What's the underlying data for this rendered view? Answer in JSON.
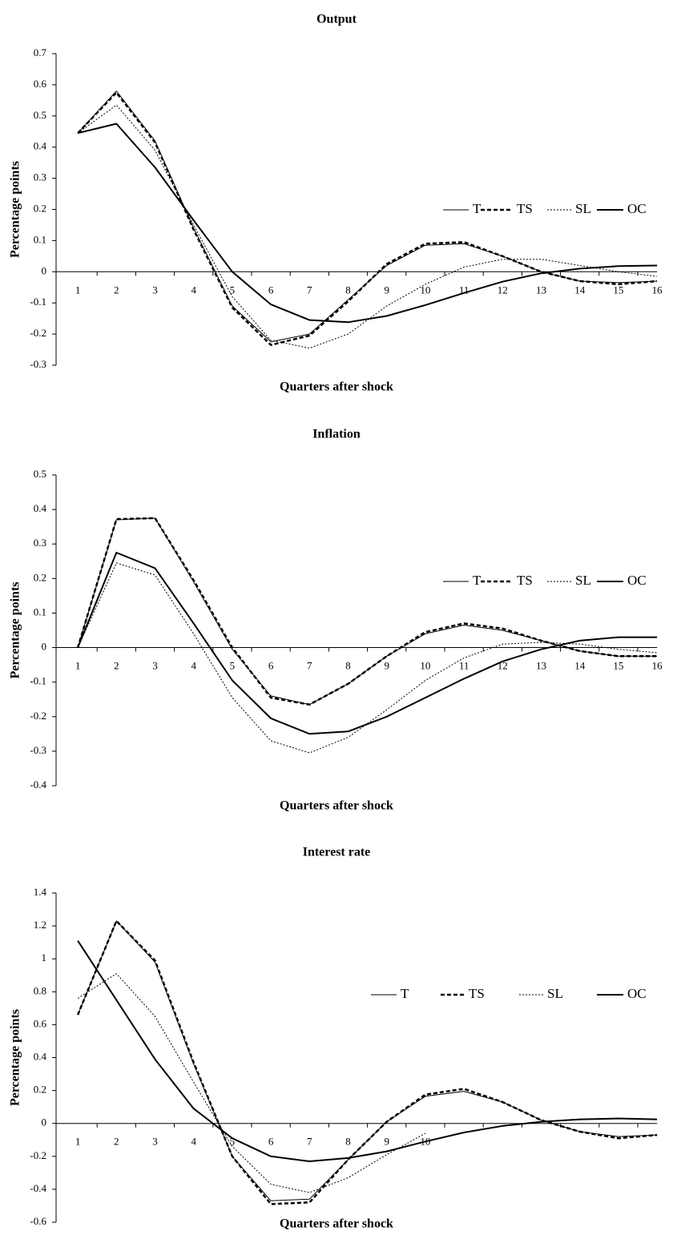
{
  "chart_data": [
    {
      "type": "line",
      "title": "Output",
      "xlabel": "Quarters after shock",
      "ylabel": "Percentage points",
      "categories": [
        "1",
        "2",
        "3",
        "4",
        "5",
        "6",
        "7",
        "8",
        "9",
        "10",
        "11",
        "12",
        "13",
        "14",
        "15",
        "16"
      ],
      "ylim": [
        -0.3,
        0.7
      ],
      "yticks": [
        0.7,
        0.6,
        0.5,
        0.4,
        0.3,
        0.2,
        0.1,
        0,
        -0.1,
        -0.2,
        -0.3
      ],
      "legend": "right",
      "series": [
        {
          "name": "T",
          "color": "#000000",
          "linestyle": "solid",
          "linewidth": 1,
          "values": [
            0.445,
            0.58,
            0.42,
            0.14,
            -0.11,
            -0.225,
            -0.2,
            -0.09,
            0.02,
            0.085,
            0.09,
            0.05,
            0.0,
            -0.03,
            -0.035,
            -0.03
          ]
        },
        {
          "name": "TS",
          "color": "#000000",
          "linestyle": "dashed",
          "linewidth": 2.5,
          "values": [
            0.445,
            0.575,
            0.415,
            0.135,
            -0.115,
            -0.235,
            -0.205,
            -0.095,
            0.025,
            0.09,
            0.095,
            0.05,
            0.0,
            -0.03,
            -0.04,
            -0.03
          ]
        },
        {
          "name": "SL",
          "color": "#000000",
          "linestyle": "dotted",
          "linewidth": 1,
          "values": [
            0.445,
            0.535,
            0.39,
            0.15,
            -0.08,
            -0.22,
            -0.245,
            -0.2,
            -0.11,
            -0.04,
            0.015,
            0.04,
            0.04,
            0.02,
            0.0,
            -0.015
          ]
        },
        {
          "name": "OC",
          "color": "#000000",
          "linestyle": "solid",
          "linewidth": 2,
          "values": [
            0.445,
            0.475,
            0.335,
            0.165,
            0.0,
            -0.105,
            -0.155,
            -0.162,
            -0.142,
            -0.107,
            -0.068,
            -0.032,
            -0.005,
            0.01,
            0.018,
            0.02
          ]
        }
      ]
    },
    {
      "type": "line",
      "title": "Inflation",
      "xlabel": "Quarters after shock",
      "ylabel": "Percentage points",
      "categories": [
        "1",
        "2",
        "3",
        "4",
        "5",
        "6",
        "7",
        "8",
        "9",
        "10",
        "11",
        "12",
        "13",
        "14",
        "15",
        "16"
      ],
      "ylim": [
        -0.4,
        0.5
      ],
      "yticks": [
        0.5,
        0.4,
        0.3,
        0.2,
        0.1,
        0,
        -0.1,
        -0.2,
        -0.3,
        -0.4
      ],
      "legend": "right",
      "series": [
        {
          "name": "T",
          "color": "#000000",
          "linestyle": "solid",
          "linewidth": 1,
          "values": [
            0,
            0.37,
            0.375,
            0.19,
            -0.005,
            -0.14,
            -0.165,
            -0.105,
            -0.025,
            0.04,
            0.065,
            0.05,
            0.02,
            -0.01,
            -0.025,
            -0.025
          ]
        },
        {
          "name": "TS",
          "color": "#000000",
          "linestyle": "dashed",
          "linewidth": 2.5,
          "values": [
            0,
            0.372,
            0.375,
            0.195,
            0.0,
            -0.145,
            -0.165,
            -0.105,
            -0.025,
            0.045,
            0.07,
            0.055,
            0.02,
            -0.01,
            -0.025,
            -0.025
          ]
        },
        {
          "name": "SL",
          "color": "#000000",
          "linestyle": "dotted",
          "linewidth": 1,
          "values": [
            0,
            0.245,
            0.21,
            0.04,
            -0.145,
            -0.27,
            -0.305,
            -0.26,
            -0.18,
            -0.095,
            -0.03,
            0.01,
            0.015,
            0.01,
            -0.005,
            -0.015
          ]
        },
        {
          "name": "OC",
          "color": "#000000",
          "linestyle": "solid",
          "linewidth": 2,
          "values": [
            0,
            0.275,
            0.23,
            0.07,
            -0.095,
            -0.205,
            -0.25,
            -0.243,
            -0.2,
            -0.145,
            -0.09,
            -0.04,
            -0.005,
            0.02,
            0.03,
            0.03
          ]
        }
      ]
    },
    {
      "type": "line",
      "title": "Interest rate",
      "xlabel": "Quarters after shock",
      "ylabel": "Percentage points",
      "categories": [
        "1",
        "2",
        "3",
        "4",
        "5",
        "6",
        "7",
        "8",
        "9",
        "10",
        null,
        null,
        null,
        null,
        null,
        null
      ],
      "ylim": [
        -0.6,
        1.4
      ],
      "yticks": [
        1.4,
        1.2,
        1,
        0.8,
        0.6,
        0.4,
        0.2,
        0,
        -0.2,
        -0.4,
        -0.6
      ],
      "legend": "right",
      "series": [
        {
          "name": "T",
          "color": "#000000",
          "linestyle": "solid",
          "linewidth": 1,
          "values": [
            0.66,
            1.23,
            0.98,
            0.36,
            -0.2,
            -0.47,
            -0.46,
            -0.22,
            0.01,
            0.165,
            0.195,
            0.13,
            0.02,
            -0.05,
            -0.08,
            -0.07
          ]
        },
        {
          "name": "TS",
          "color": "#000000",
          "linestyle": "dashed",
          "linewidth": 2.5,
          "values": [
            0.66,
            1.23,
            0.99,
            0.37,
            -0.2,
            -0.49,
            -0.48,
            -0.22,
            0.01,
            0.175,
            0.21,
            0.13,
            0.02,
            -0.05,
            -0.09,
            -0.07
          ]
        },
        {
          "name": "SL",
          "color": "#000000",
          "linestyle": "dotted",
          "linewidth": 1,
          "values": [
            0.76,
            0.91,
            0.65,
            0.25,
            -0.14,
            -0.37,
            -0.42,
            -0.33,
            -0.19,
            -0.06,
            null,
            null,
            null,
            null,
            null,
            null
          ]
        },
        {
          "name": "OC",
          "color": "#000000",
          "linestyle": "solid",
          "linewidth": 2,
          "values": [
            1.11,
            0.75,
            0.39,
            0.09,
            -0.09,
            -0.2,
            -0.23,
            -0.21,
            -0.17,
            -0.11,
            -0.055,
            -0.015,
            0.01,
            0.025,
            0.03,
            0.025
          ]
        }
      ]
    }
  ]
}
